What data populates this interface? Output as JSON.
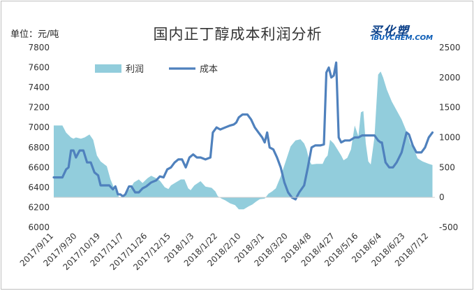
{
  "header": {
    "unit": "单位：元/吨",
    "title": "国内正丁醇成本利润分析",
    "logo_cn": "买化塑",
    "logo_en": "iBUYCHEM.COM"
  },
  "colors": {
    "profit_area": "#92cddc",
    "cost_line": "#4f81bd",
    "logo": "#0a3f88"
  },
  "chart_data": {
    "type": "line",
    "title": "国内正丁醇成本利润分析",
    "ylabel": "单位：元/吨",
    "grid": false,
    "legend_position": "top-left",
    "x_dates": [
      "2017/9/11",
      "2017/9/30",
      "2017/10/19",
      "2017/11/7",
      "2017/11/26",
      "2017/12/15",
      "2018/1/3",
      "2018/1/22",
      "2018/2/10",
      "2018/3/1",
      "2018/3/20",
      "2018/4/8",
      "2018/4/27",
      "2018/5/16",
      "2018/6/4",
      "2018/6/23",
      "2018/7/12"
    ],
    "x_range": [
      "2017/9/11",
      "2018/7/17"
    ],
    "y_left": {
      "ticks": [
        6000,
        6200,
        6400,
        6600,
        6800,
        7000,
        7200,
        7400,
        7600,
        7800
      ],
      "range": [
        6000,
        7800
      ]
    },
    "y_right": {
      "ticks": [
        -500,
        0,
        500,
        1000,
        1500,
        2000,
        2500
      ],
      "range": [
        -500,
        2500
      ]
    },
    "series": [
      {
        "name": "利润",
        "kind": "area",
        "axis": "right",
        "points": [
          [
            "2017/9/11",
            1200
          ],
          [
            "2017/9/18",
            1200
          ],
          [
            "2017/9/21",
            1080
          ],
          [
            "2017/9/25",
            1000
          ],
          [
            "2017/9/27",
            980
          ],
          [
            "2017/9/29",
            1000
          ],
          [
            "2017/10/3",
            980
          ],
          [
            "2017/10/6",
            1000
          ],
          [
            "2017/10/10",
            1050
          ],
          [
            "2017/10/13",
            960
          ],
          [
            "2017/10/16",
            700
          ],
          [
            "2017/10/19",
            600
          ],
          [
            "2017/10/24",
            520
          ],
          [
            "2017/10/27",
            300
          ],
          [
            "2017/10/30",
            150
          ],
          [
            "2017/11/1",
            80
          ],
          [
            "2017/11/3",
            0
          ],
          [
            "2017/11/6",
            20
          ],
          [
            "2017/11/9",
            80
          ],
          [
            "2017/11/12",
            150
          ],
          [
            "2017/11/15",
            250
          ],
          [
            "2017/11/19",
            300
          ],
          [
            "2017/11/22",
            240
          ],
          [
            "2017/11/26",
            320
          ],
          [
            "2017/11/29",
            360
          ],
          [
            "2017/12/3",
            320
          ],
          [
            "2017/12/6",
            280
          ],
          [
            "2017/12/10",
            170
          ],
          [
            "2017/12/13",
            140
          ],
          [
            "2017/12/15",
            200
          ],
          [
            "2017/12/19",
            250
          ],
          [
            "2017/12/23",
            300
          ],
          [
            "2017/12/26",
            300
          ],
          [
            "2017/12/29",
            150
          ],
          [
            "2017/12/31",
            120
          ],
          [
            "2018/1/3",
            200
          ],
          [
            "2018/1/8",
            270
          ],
          [
            "2018/1/12",
            180
          ],
          [
            "2018/1/17",
            160
          ],
          [
            "2018/1/20",
            100
          ],
          [
            "2018/1/22",
            20
          ],
          [
            "2018/1/25",
            -20
          ],
          [
            "2018/1/28",
            -50
          ],
          [
            "2018/2/1",
            -100
          ],
          [
            "2018/2/5",
            -130
          ],
          [
            "2018/2/8",
            -200
          ],
          [
            "2018/2/12",
            -200
          ],
          [
            "2018/2/16",
            -150
          ],
          [
            "2018/2/19",
            -120
          ],
          [
            "2018/2/22",
            -70
          ],
          [
            "2018/2/25",
            -30
          ],
          [
            "2018/3/1",
            -20
          ],
          [
            "2018/3/4",
            60
          ],
          [
            "2018/3/7",
            100
          ],
          [
            "2018/3/10",
            150
          ],
          [
            "2018/3/14",
            350
          ],
          [
            "2018/3/18",
            600
          ],
          [
            "2018/3/22",
            850
          ],
          [
            "2018/3/26",
            950
          ],
          [
            "2018/3/30",
            970
          ],
          [
            "2018/4/2",
            900
          ],
          [
            "2018/4/4",
            800
          ],
          [
            "2018/4/6",
            620
          ],
          [
            "2018/4/8",
            550
          ],
          [
            "2018/4/12",
            560
          ],
          [
            "2018/4/17",
            560
          ],
          [
            "2018/4/19",
            650
          ],
          [
            "2018/4/21",
            700
          ],
          [
            "2018/4/23",
            960
          ],
          [
            "2018/4/26",
            900
          ],
          [
            "2018/4/29",
            800
          ],
          [
            "2018/5/2",
            700
          ],
          [
            "2018/5/4",
            620
          ],
          [
            "2018/5/7",
            660
          ],
          [
            "2018/5/10",
            800
          ],
          [
            "2018/5/13",
            1200
          ],
          [
            "2018/5/16",
            1020
          ],
          [
            "2018/5/18",
            1420
          ],
          [
            "2018/5/20",
            1440
          ],
          [
            "2018/5/22",
            900
          ],
          [
            "2018/5/24",
            600
          ],
          [
            "2018/5/26",
            550
          ],
          [
            "2018/5/29",
            1000
          ],
          [
            "2018/6/1",
            2050
          ],
          [
            "2018/6/3",
            2100
          ],
          [
            "2018/6/5",
            2000
          ],
          [
            "2018/6/8",
            1800
          ],
          [
            "2018/6/12",
            1600
          ],
          [
            "2018/6/16",
            1450
          ],
          [
            "2018/6/20",
            1300
          ],
          [
            "2018/6/24",
            1100
          ],
          [
            "2018/6/27",
            900
          ],
          [
            "2018/6/30",
            800
          ],
          [
            "2018/7/3",
            650
          ],
          [
            "2018/7/7",
            600
          ],
          [
            "2018/7/12",
            560
          ],
          [
            "2018/7/15",
            540
          ]
        ]
      },
      {
        "name": "成本",
        "kind": "line",
        "axis": "left",
        "points": [
          [
            "2017/9/11",
            6500
          ],
          [
            "2017/9/18",
            6500
          ],
          [
            "2017/9/21",
            6580
          ],
          [
            "2017/9/23",
            6600
          ],
          [
            "2017/9/25",
            6770
          ],
          [
            "2017/9/27",
            6770
          ],
          [
            "2017/9/29",
            6700
          ],
          [
            "2017/10/2",
            6770
          ],
          [
            "2017/10/5",
            6770
          ],
          [
            "2017/10/8",
            6650
          ],
          [
            "2017/10/11",
            6650
          ],
          [
            "2017/10/14",
            6550
          ],
          [
            "2017/10/17",
            6520
          ],
          [
            "2017/10/19",
            6420
          ],
          [
            "2017/10/26",
            6420
          ],
          [
            "2017/10/29",
            6380
          ],
          [
            "2017/10/31",
            6410
          ],
          [
            "2017/11/2",
            6330
          ],
          [
            "2017/11/4",
            6330
          ],
          [
            "2017/11/6",
            6310
          ],
          [
            "2017/11/8",
            6330
          ],
          [
            "2017/11/11",
            6410
          ],
          [
            "2017/11/13",
            6410
          ],
          [
            "2017/11/16",
            6350
          ],
          [
            "2017/11/19",
            6350
          ],
          [
            "2017/11/22",
            6390
          ],
          [
            "2017/11/25",
            6410
          ],
          [
            "2017/11/29",
            6450
          ],
          [
            "2017/12/3",
            6470
          ],
          [
            "2017/12/6",
            6510
          ],
          [
            "2017/12/9",
            6500
          ],
          [
            "2017/12/12",
            6580
          ],
          [
            "2017/12/15",
            6600
          ],
          [
            "2017/12/18",
            6650
          ],
          [
            "2017/12/21",
            6680
          ],
          [
            "2017/12/24",
            6680
          ],
          [
            "2017/12/27",
            6600
          ],
          [
            "2017/12/30",
            6700
          ],
          [
            "2018/1/2",
            6730
          ],
          [
            "2018/1/5",
            6700
          ],
          [
            "2018/1/8",
            6700
          ],
          [
            "2018/1/12",
            6680
          ],
          [
            "2018/1/16",
            6700
          ],
          [
            "2018/1/18",
            6950
          ],
          [
            "2018/1/21",
            7000
          ],
          [
            "2018/1/24",
            6980
          ],
          [
            "2018/1/28",
            7000
          ],
          [
            "2018/2/1",
            7020
          ],
          [
            "2018/2/4",
            7030
          ],
          [
            "2018/2/6",
            7050
          ],
          [
            "2018/2/8",
            7100
          ],
          [
            "2018/2/11",
            7130
          ],
          [
            "2018/2/15",
            7130
          ],
          [
            "2018/2/18",
            7080
          ],
          [
            "2018/2/21",
            7000
          ],
          [
            "2018/2/24",
            6950
          ],
          [
            "2018/2/27",
            6900
          ],
          [
            "2018/3/1",
            6850
          ],
          [
            "2018/3/3",
            6950
          ],
          [
            "2018/3/5",
            6800
          ],
          [
            "2018/3/8",
            6780
          ],
          [
            "2018/3/11",
            6700
          ],
          [
            "2018/3/14",
            6600
          ],
          [
            "2018/3/17",
            6450
          ],
          [
            "2018/3/20",
            6350
          ],
          [
            "2018/3/23",
            6300
          ],
          [
            "2018/3/26",
            6280
          ],
          [
            "2018/3/29",
            6350
          ],
          [
            "2018/4/2",
            6420
          ],
          [
            "2018/4/5",
            6600
          ],
          [
            "2018/4/8",
            6800
          ],
          [
            "2018/4/11",
            6820
          ],
          [
            "2018/4/15",
            6820
          ],
          [
            "2018/4/18",
            6830
          ],
          [
            "2018/4/20",
            7550
          ],
          [
            "2018/4/22",
            7600
          ],
          [
            "2018/4/24",
            7500
          ],
          [
            "2018/4/26",
            7520
          ],
          [
            "2018/4/28",
            7650
          ],
          [
            "2018/4/30",
            6900
          ],
          [
            "2018/5/2",
            6850
          ],
          [
            "2018/5/5",
            6870
          ],
          [
            "2018/5/9",
            6870
          ],
          [
            "2018/5/13",
            6900
          ],
          [
            "2018/5/16",
            6900
          ],
          [
            "2018/5/19",
            6920
          ],
          [
            "2018/5/22",
            6920
          ],
          [
            "2018/5/26",
            6920
          ],
          [
            "2018/5/29",
            6920
          ],
          [
            "2018/6/1",
            6870
          ],
          [
            "2018/6/3",
            6850
          ],
          [
            "2018/6/4",
            6850
          ],
          [
            "2018/6/7",
            6650
          ],
          [
            "2018/6/10",
            6600
          ],
          [
            "2018/6/13",
            6600
          ],
          [
            "2018/6/16",
            6650
          ],
          [
            "2018/6/20",
            6750
          ],
          [
            "2018/6/24",
            6950
          ],
          [
            "2018/6/26",
            6930
          ],
          [
            "2018/6/29",
            6820
          ],
          [
            "2018/7/2",
            6750
          ],
          [
            "2018/7/6",
            6750
          ],
          [
            "2018/7/9",
            6800
          ],
          [
            "2018/7/12",
            6900
          ],
          [
            "2018/7/15",
            6950
          ]
        ]
      }
    ]
  }
}
